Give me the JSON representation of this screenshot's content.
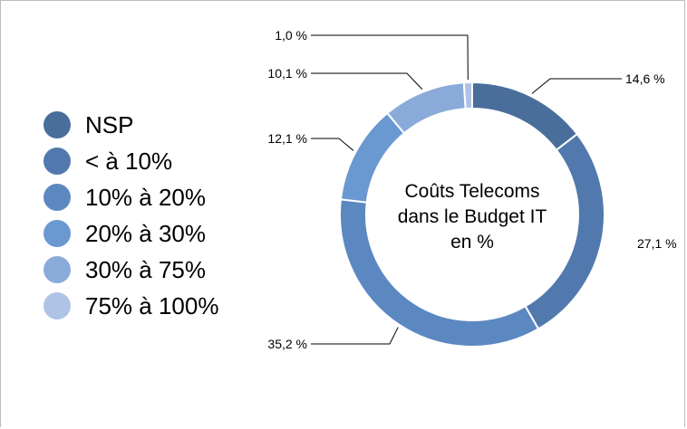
{
  "chart_data": {
    "type": "pie",
    "variant": "donut",
    "title_lines": [
      "Coûts Telecoms",
      "dans le Budget IT",
      "en %"
    ],
    "categories": [
      "NSP",
      "< à 10%",
      "10% à 20%",
      "20% à 30%",
      "30% à 75%",
      "75% à 100%"
    ],
    "values": [
      14.6,
      27.1,
      35.2,
      12.1,
      10.1,
      1.0
    ],
    "value_labels": [
      "14,6 %",
      "27,1 %",
      "35,2 %",
      "12,1 %",
      "10,1 %",
      "1,0 %"
    ],
    "colors": [
      "#4a6e9b",
      "#5279ad",
      "#5c88c2",
      "#6a98d0",
      "#8aabd9",
      "#aec3e6"
    ],
    "legend_position": "left"
  }
}
